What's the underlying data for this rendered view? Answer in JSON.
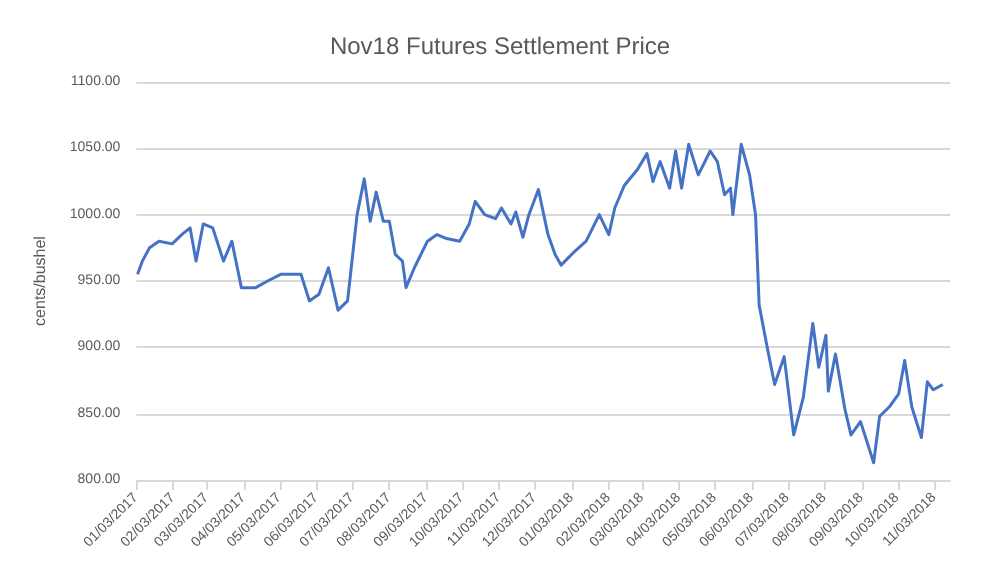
{
  "chart_data": {
    "type": "line",
    "title": "Nov18 Futures Settlement Price",
    "ylabel": "cents/bushel",
    "x": [
      "2017-01-04",
      "2017-01-08",
      "2017-01-14",
      "2017-01-22",
      "2017-02-02",
      "2017-02-10",
      "2017-02-17",
      "2017-02-22",
      "2017-02-28",
      "2017-03-08",
      "2017-03-17",
      "2017-03-24",
      "2017-04-01",
      "2017-04-13",
      "2017-04-23",
      "2017-05-04",
      "2017-05-12",
      "2017-05-21",
      "2017-05-28",
      "2017-06-05",
      "2017-06-13",
      "2017-06-21",
      "2017-06-29",
      "2017-07-07",
      "2017-07-13",
      "2017-07-18",
      "2017-07-23",
      "2017-07-29",
      "2017-08-03",
      "2017-08-08",
      "2017-08-14",
      "2017-08-17",
      "2017-08-24",
      "2017-09-04",
      "2017-09-12",
      "2017-09-20",
      "2017-10-01",
      "2017-10-09",
      "2017-10-14",
      "2017-10-22",
      "2017-10-31",
      "2017-11-05",
      "2017-11-13",
      "2017-11-17",
      "2017-11-23",
      "2017-11-28",
      "2017-12-06",
      "2017-12-14",
      "2017-12-20",
      "2017-12-25",
      "2018-01-05",
      "2018-01-15",
      "2018-01-26",
      "2018-02-03",
      "2018-02-08",
      "2018-02-16",
      "2018-02-27",
      "2018-03-07",
      "2018-03-12",
      "2018-03-18",
      "2018-03-26",
      "2018-03-31",
      "2018-04-05",
      "2018-04-11",
      "2018-04-19",
      "2018-04-29",
      "2018-05-05",
      "2018-05-11",
      "2018-05-16",
      "2018-05-18",
      "2018-05-25",
      "2018-06-01",
      "2018-06-06",
      "2018-06-09",
      "2018-06-16",
      "2018-06-22",
      "2018-06-30",
      "2018-07-08",
      "2018-07-16",
      "2018-07-24",
      "2018-07-29",
      "2018-08-04",
      "2018-08-06",
      "2018-08-12",
      "2018-08-20",
      "2018-08-25",
      "2018-09-02",
      "2018-09-07",
      "2018-09-13",
      "2018-09-18",
      "2018-09-26",
      "2018-10-04",
      "2018-10-09",
      "2018-10-15",
      "2018-10-23",
      "2018-10-28",
      "2018-11-02",
      "2018-11-10"
    ],
    "values": [
      955,
      965,
      975,
      980,
      978,
      985,
      990,
      965,
      993,
      990,
      965,
      980,
      945,
      945,
      950,
      955,
      955,
      955,
      935,
      940,
      960,
      928,
      935,
      1000,
      1027,
      995,
      1017,
      995,
      995,
      970,
      965,
      945,
      960,
      980,
      985,
      982,
      980,
      993,
      1010,
      1000,
      997,
      1005,
      993,
      1002,
      983,
      1000,
      1019,
      985,
      970,
      962,
      972,
      980,
      1000,
      985,
      1005,
      1022,
      1034,
      1046,
      1025,
      1040,
      1020,
      1048,
      1020,
      1053,
      1030,
      1048,
      1040,
      1015,
      1020,
      1000,
      1053,
      1030,
      1000,
      932,
      899,
      872,
      893,
      834,
      862,
      918,
      885,
      909,
      867,
      895,
      853,
      834,
      844,
      830,
      813,
      848,
      855,
      865,
      890,
      855,
      832,
      874,
      868,
      872
    ],
    "color": "#4472c4",
    "xlim": [
      "2017-01-03",
      "2018-11-16"
    ],
    "xticks": [
      {
        "value": "2017-01-03",
        "label": "01/03/2017"
      },
      {
        "value": "2017-02-03",
        "label": "02/03/2017"
      },
      {
        "value": "2017-03-03",
        "label": "03/03/2017"
      },
      {
        "value": "2017-04-03",
        "label": "04/03/2017"
      },
      {
        "value": "2017-05-03",
        "label": "05/03/2017"
      },
      {
        "value": "2017-06-03",
        "label": "06/03/2017"
      },
      {
        "value": "2017-07-03",
        "label": "07/03/2017"
      },
      {
        "value": "2017-08-03",
        "label": "08/03/2017"
      },
      {
        "value": "2017-09-03",
        "label": "09/03/2017"
      },
      {
        "value": "2017-10-03",
        "label": "10/03/2017"
      },
      {
        "value": "2017-11-03",
        "label": "11/03/2017"
      },
      {
        "value": "2017-12-03",
        "label": "12/03/2017"
      },
      {
        "value": "2018-01-03",
        "label": "01/03/2018"
      },
      {
        "value": "2018-02-03",
        "label": "02/03/2018"
      },
      {
        "value": "2018-03-03",
        "label": "03/03/2018"
      },
      {
        "value": "2018-04-03",
        "label": "04/03/2018"
      },
      {
        "value": "2018-05-03",
        "label": "05/03/2018"
      },
      {
        "value": "2018-06-03",
        "label": "06/03/2018"
      },
      {
        "value": "2018-07-03",
        "label": "07/03/2018"
      },
      {
        "value": "2018-08-03",
        "label": "08/03/2018"
      },
      {
        "value": "2018-09-03",
        "label": "09/03/2018"
      },
      {
        "value": "2018-10-03",
        "label": "10/03/2018"
      },
      {
        "value": "2018-11-03",
        "label": "11/03/2018"
      }
    ],
    "ylim": [
      800,
      1100
    ],
    "yticks": [
      {
        "value": 800,
        "label": "800.00"
      },
      {
        "value": 850,
        "label": "850.00"
      },
      {
        "value": 900,
        "label": "900.00"
      },
      {
        "value": 950,
        "label": "950.00"
      },
      {
        "value": 1000,
        "label": "1000.00"
      },
      {
        "value": 1050,
        "label": "1050.00"
      },
      {
        "value": 1100,
        "label": "1100.00"
      }
    ],
    "grid": "y",
    "marker": "none",
    "line_style": "solid"
  }
}
